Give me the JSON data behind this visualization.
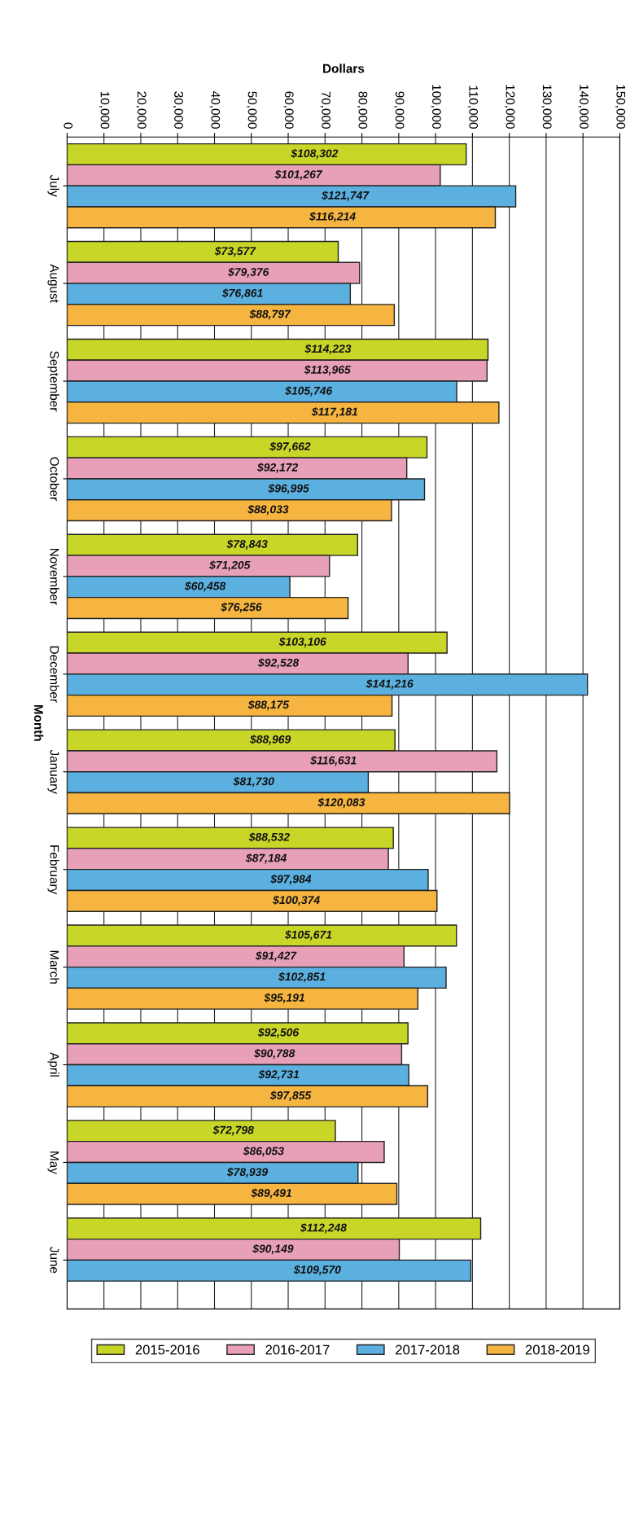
{
  "chart_data": {
    "type": "bar",
    "orientation": "horizontal",
    "xlabel": "Dollars",
    "ylabel": "Month",
    "categories": [
      "July",
      "August",
      "September",
      "October",
      "November",
      "December",
      "January",
      "February",
      "March",
      "April",
      "May",
      "June"
    ],
    "series": [
      {
        "name": "2015-2016",
        "color": "#c8d628",
        "values": [
          108302,
          73577,
          114223,
          97662,
          78843,
          103106,
          88969,
          88532,
          105671,
          92506,
          72798,
          112248
        ],
        "value_labels": [
          "$108,302",
          "$73,577",
          "$114,223",
          "$97,662",
          "$78,843",
          "$103,106",
          "$88,969",
          "$88,532",
          "$105,671",
          "$92,506",
          "$72,798",
          "$112,248"
        ]
      },
      {
        "name": "2016-2017",
        "color": "#e8a0b8",
        "values": [
          101267,
          79376,
          113965,
          92172,
          71205,
          92528,
          116631,
          87184,
          91427,
          90788,
          86053,
          90149
        ],
        "value_labels": [
          "$101,267",
          "$79,376",
          "$113,965",
          "$92,172",
          "$71,205",
          "$92,528",
          "$116,631",
          "$87,184",
          "$91,427",
          "$90,788",
          "$86,053",
          "$90,149"
        ]
      },
      {
        "name": "2017-2018",
        "color": "#5bb0e0",
        "values": [
          121747,
          76861,
          105746,
          96995,
          60458,
          141216,
          81730,
          97984,
          102851,
          92731,
          78939,
          109570
        ],
        "value_labels": [
          "$121,747",
          "$76,861",
          "$105,746",
          "$96,995",
          "$60,458",
          "$141,216",
          "$81,730",
          "$97,984",
          "$102,851",
          "$92,731",
          "$78,939",
          "$109,570"
        ]
      },
      {
        "name": "2018-2019",
        "color": "#f5b540",
        "values": [
          116214,
          88797,
          117181,
          88033,
          76256,
          88175,
          120083,
          100374,
          95191,
          97855,
          89491,
          null
        ],
        "value_labels": [
          "$116,214",
          "$88,797",
          "$117,181",
          "$88,033",
          "$76,256",
          "$88,175",
          "$120,083",
          "$100,374",
          "$95,191",
          "$97,855",
          "$89,491",
          null
        ]
      }
    ],
    "xlim": [
      0,
      150000
    ],
    "xticks": [
      0,
      {
        "value": 10000,
        "label": "10,000"
      },
      {
        "value": 20000,
        "label": "20,000"
      },
      {
        "value": 30000,
        "label": "30,000"
      },
      {
        "value": 40000,
        "label": "40,000"
      },
      {
        "value": 50000,
        "label": "50,000"
      },
      {
        "value": 60000,
        "label": "60,000"
      },
      {
        "value": 70000,
        "label": "70,000"
      },
      {
        "value": 80000,
        "label": "80,000"
      },
      {
        "value": 90000,
        "label": "90,000"
      },
      {
        "value": 100000,
        "label": "100,000"
      },
      {
        "value": 110000,
        "label": "110,000"
      },
      {
        "value": 120000,
        "label": "120,000"
      },
      {
        "value": 130000,
        "label": "130,000"
      },
      {
        "value": 140000,
        "label": "140,000"
      },
      {
        "value": 150000,
        "label": "150,000"
      }
    ],
    "grid": "x",
    "legend": "bottom"
  }
}
